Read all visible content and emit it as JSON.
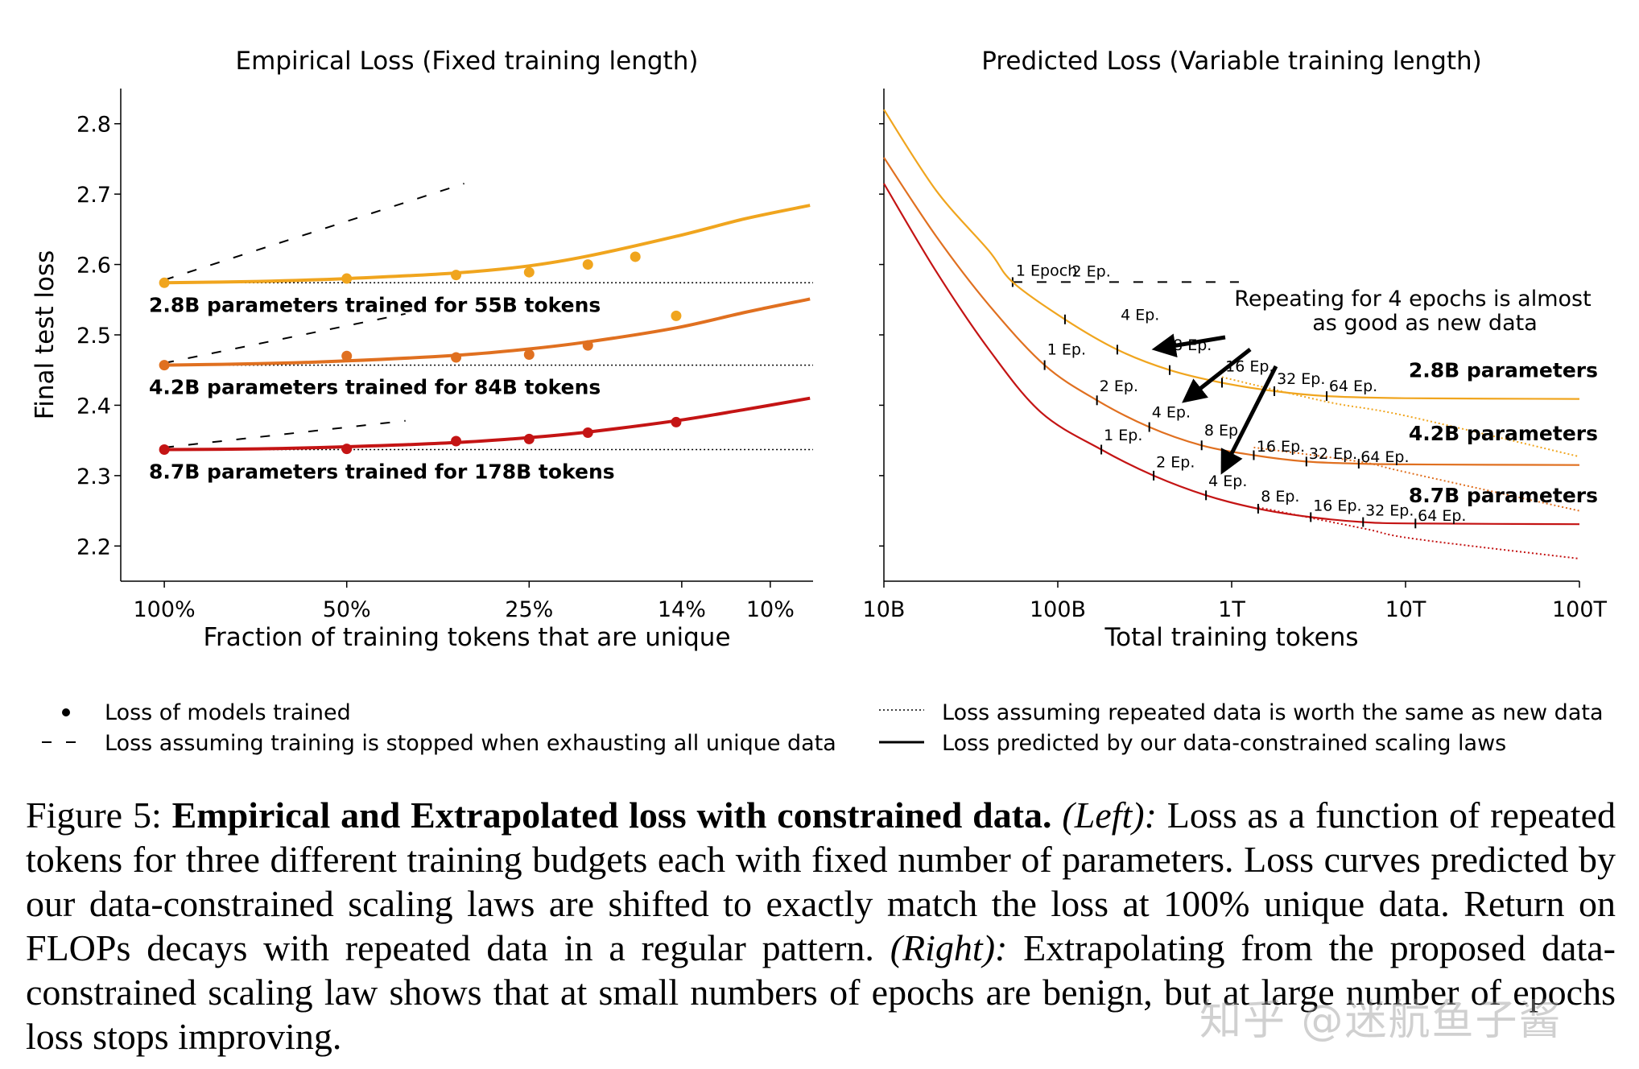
{
  "chart_data": [
    {
      "type": "line",
      "title": "Empirical Loss (Fixed training length)",
      "xlabel": "Fraction of training tokens that are unique",
      "ylabel": "Final test loss",
      "xscale": "log",
      "xlim": [
        0.085,
        1.18
      ],
      "ylim": [
        2.15,
        2.85
      ],
      "xticks": [
        1.0,
        0.5,
        0.25,
        0.14,
        0.1
      ],
      "xtick_labels": [
        "100%",
        "50%",
        "25%",
        "14%",
        "10%"
      ],
      "yticks": [
        2.2,
        2.3,
        2.4,
        2.5,
        2.6,
        2.7,
        2.8
      ],
      "ytick_labels": [
        "2.2",
        "2.3",
        "2.4",
        "2.5",
        "2.6",
        "2.7",
        "2.8"
      ],
      "series": [
        {
          "name": "2.8B parameters trained for 55B tokens",
          "color": "#f0a51e",
          "base": 2.574,
          "points": [
            [
              1.0,
              2.574
            ],
            [
              0.5,
              2.58
            ],
            [
              0.33,
              2.585
            ],
            [
              0.25,
              2.589
            ],
            [
              0.2,
              2.6
            ],
            [
              0.167,
              2.611
            ],
            [
              0.143,
              2.527
            ]
          ],
          "curve": [
            [
              1.0,
              2.574
            ],
            [
              0.7,
              2.576
            ],
            [
              0.5,
              2.58
            ],
            [
              0.33,
              2.588
            ],
            [
              0.25,
              2.598
            ],
            [
              0.2,
              2.612
            ],
            [
              0.143,
              2.64
            ],
            [
              0.11,
              2.665
            ],
            [
              0.086,
              2.684
            ]
          ],
          "dashed": [
            [
              1.0,
              2.578
            ],
            [
              0.32,
              2.715
            ]
          ]
        },
        {
          "name": "4.2B parameters trained for 84B tokens",
          "color": "#e07020",
          "base": 2.457,
          "points": [
            [
              1.0,
              2.457
            ],
            [
              0.5,
              2.47
            ],
            [
              0.33,
              2.468
            ],
            [
              0.25,
              2.472
            ],
            [
              0.2,
              2.485
            ]
          ],
          "curve": [
            [
              1.0,
              2.457
            ],
            [
              0.7,
              2.459
            ],
            [
              0.5,
              2.463
            ],
            [
              0.33,
              2.471
            ],
            [
              0.25,
              2.48
            ],
            [
              0.2,
              2.49
            ],
            [
              0.143,
              2.51
            ],
            [
              0.11,
              2.532
            ],
            [
              0.086,
              2.551
            ]
          ],
          "dashed": [
            [
              1.0,
              2.46
            ],
            [
              0.4,
              2.53
            ]
          ]
        },
        {
          "name": "8.7B parameters trained for 178B tokens",
          "color": "#c41414",
          "base": 2.337,
          "points": [
            [
              1.0,
              2.337
            ],
            [
              0.5,
              2.338
            ],
            [
              0.33,
              2.349
            ],
            [
              0.25,
              2.352
            ],
            [
              0.2,
              2.361
            ],
            [
              0.143,
              2.376
            ]
          ],
          "curve": [
            [
              1.0,
              2.337
            ],
            [
              0.7,
              2.338
            ],
            [
              0.5,
              2.341
            ],
            [
              0.33,
              2.347
            ],
            [
              0.25,
              2.354
            ],
            [
              0.2,
              2.362
            ],
            [
              0.143,
              2.378
            ],
            [
              0.11,
              2.394
            ],
            [
              0.086,
              2.41
            ]
          ],
          "dashed": [
            [
              1.0,
              2.34
            ],
            [
              0.4,
              2.378
            ]
          ]
        }
      ]
    },
    {
      "type": "line",
      "title": "Predicted Loss (Variable training length)",
      "xlabel": "Total training tokens",
      "xscale": "log",
      "xlim": [
        10000000000,
        100000000000000
      ],
      "ylim": [
        2.15,
        2.85
      ],
      "xticks": [
        10000000000,
        100000000000,
        1000000000000,
        10000000000000,
        100000000000000
      ],
      "xtick_labels": [
        "10B",
        "100B",
        "1T",
        "10T",
        "100T"
      ],
      "epoch_line_label": "1 Epoch",
      "annotation": [
        "Repeating for 4 epochs is almost",
        "as good as new data"
      ],
      "series": [
        {
          "name": "2.8B parameters",
          "color": "#f0a51e",
          "solid": [
            [
              10000000000,
              2.82
            ],
            [
              20000000000,
              2.705
            ],
            [
              40000000000,
              2.62
            ],
            [
              55000000000,
              2.575
            ],
            [
              110000000000,
              2.522
            ],
            [
              220000000000,
              2.479
            ],
            [
              440000000000,
              2.45
            ],
            [
              880000000000,
              2.432
            ],
            [
              1760000000000,
              2.42
            ],
            [
              3520000000000,
              2.413
            ],
            [
              10000000000000,
              2.41
            ],
            [
              100000000000000,
              2.409
            ]
          ],
          "dotted": [
            [
              880000000000,
              2.44
            ],
            [
              3520000000000,
              2.405
            ],
            [
              10000000000000,
              2.385
            ],
            [
              100000000000000,
              2.327
            ]
          ],
          "epoch_labels": [
            "2 Ep.",
            "4 Ep.",
            "8 Ep.",
            "16 Ep.",
            "32 Ep.",
            "64 Ep."
          ],
          "epoch_tokens": [
            110000000000,
            220000000000,
            440000000000,
            880000000000,
            1760000000000,
            3520000000000
          ]
        },
        {
          "name": "4.2B parameters",
          "color": "#e07020",
          "solid": [
            [
              10000000000,
              2.752
            ],
            [
              20000000000,
              2.64
            ],
            [
              40000000000,
              2.543
            ],
            [
              84000000000,
              2.457
            ],
            [
              168000000000,
              2.407
            ],
            [
              336000000000,
              2.369
            ],
            [
              672000000000,
              2.343
            ],
            [
              1340000000000,
              2.329
            ],
            [
              2690000000000,
              2.32
            ],
            [
              5380000000000,
              2.317
            ],
            [
              10000000000000,
              2.316
            ],
            [
              100000000000000,
              2.315
            ]
          ],
          "dotted": [
            [
              1340000000000,
              2.34
            ],
            [
              5380000000000,
              2.32
            ],
            [
              10000000000000,
              2.305
            ],
            [
              100000000000000,
              2.25
            ]
          ],
          "epoch_labels": [
            "1 Ep.",
            "2 Ep.",
            "4 Ep.",
            "8 Ep.",
            "16 Ep.",
            "32 Ep.",
            "64 Ep."
          ],
          "epoch_tokens": [
            84000000000,
            168000000000,
            336000000000,
            672000000000,
            1340000000000,
            2690000000000,
            5380000000000
          ]
        },
        {
          "name": "8.7B parameters",
          "color": "#c41414",
          "solid": [
            [
              10000000000,
              2.715
            ],
            [
              20000000000,
              2.59
            ],
            [
              40000000000,
              2.48
            ],
            [
              80000000000,
              2.39
            ],
            [
              178000000000,
              2.337
            ],
            [
              356000000000,
              2.3
            ],
            [
              712000000000,
              2.272
            ],
            [
              1420000000000,
              2.253
            ],
            [
              2850000000000,
              2.241
            ],
            [
              5700000000000,
              2.234
            ],
            [
              11400000000000,
              2.232
            ],
            [
              100000000000000,
              2.231
            ]
          ],
          "dotted": [
            [
              1420000000000,
              2.255
            ],
            [
              5700000000000,
              2.225
            ],
            [
              11400000000000,
              2.21
            ],
            [
              100000000000000,
              2.182
            ]
          ],
          "epoch_labels": [
            "1 Ep.",
            "2 Ep.",
            "4 Ep.",
            "8 Ep.",
            "16 Ep.",
            "32 Ep.",
            "64 Ep."
          ],
          "epoch_tokens": [
            178000000000,
            356000000000,
            712000000000,
            1420000000000,
            2850000000000,
            5700000000000,
            11400000000000
          ]
        }
      ]
    }
  ],
  "legend": {
    "dot": "Loss of models trained",
    "dashed": "Loss assuming training is stopped when exhausting all unique data",
    "dotted": "Loss assuming repeated data is worth the same as new data",
    "solid": "Loss predicted by our data-constrained scaling laws"
  },
  "caption": {
    "prefix": "Figure 5: ",
    "bold": "Empirical and Extrapolated loss with constrained data.",
    "left_label": "(Left):",
    "left_text": " Loss as a function of repeated tokens for three different training budgets each with fixed number of parameters. Loss curves predicted by our data-constrained scaling laws are shifted to exactly match the loss at 100% unique data. Return on FLOPs decays with repeated data in a regular pattern. ",
    "right_label": "(Right):",
    "right_text": " Extrapolating from the proposed data-constrained scaling law shows that at small numbers of epochs are benign, but at large number of epochs loss stops improving."
  },
  "watermark": "知乎 @迷航鱼子酱"
}
